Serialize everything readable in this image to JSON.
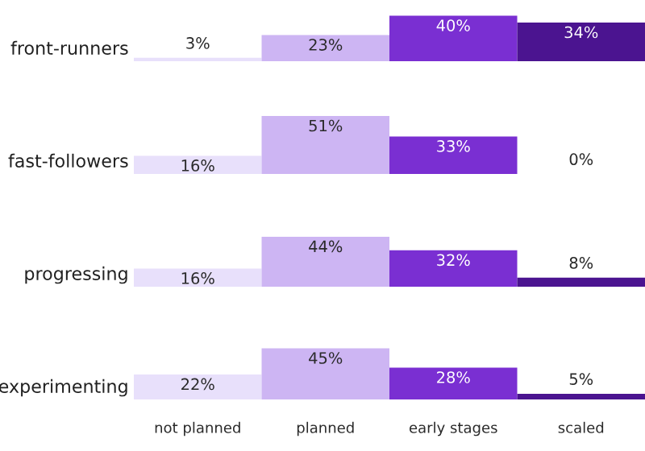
{
  "chart_data": [
    {
      "type": "bar",
      "ylabel": "front-runners",
      "categories": [
        null,
        null,
        null,
        null
      ],
      "values": [
        3,
        23,
        40,
        34
      ],
      "value_labels": [
        "3%",
        "23%",
        "40%",
        "34%"
      ],
      "colors": [
        "#e8e0fb",
        "#cdb5f3",
        "#7a2fd2",
        "#4b1490"
      ]
    },
    {
      "type": "bar",
      "ylabel": "fast-followers",
      "categories": [
        null,
        null,
        null,
        null
      ],
      "values": [
        16,
        51,
        33,
        0
      ],
      "value_labels": [
        "16%",
        "51%",
        "33%",
        "0%"
      ],
      "colors": [
        "#e8e0fb",
        "#cdb5f3",
        "#7a2fd2",
        "#4b1490"
      ]
    },
    {
      "type": "bar",
      "ylabel": "progressing",
      "categories": [
        null,
        null,
        null,
        null
      ],
      "values": [
        16,
        44,
        32,
        8
      ],
      "value_labels": [
        "16%",
        "44%",
        "32%",
        "8%"
      ],
      "colors": [
        "#e8e0fb",
        "#cdb5f3",
        "#7a2fd2",
        "#4b1490"
      ]
    },
    {
      "type": "bar",
      "ylabel": "experimenting",
      "categories": [
        "not planned",
        "planned",
        "early stages",
        "scaled"
      ],
      "values": [
        22,
        45,
        28,
        5
      ],
      "value_labels": [
        "22%",
        "45%",
        "28%",
        "5%"
      ],
      "colors": [
        "#e8e0fb",
        "#cdb5f3",
        "#7a2fd2",
        "#4b1490"
      ],
      "tick_labels": "x"
    }
  ]
}
